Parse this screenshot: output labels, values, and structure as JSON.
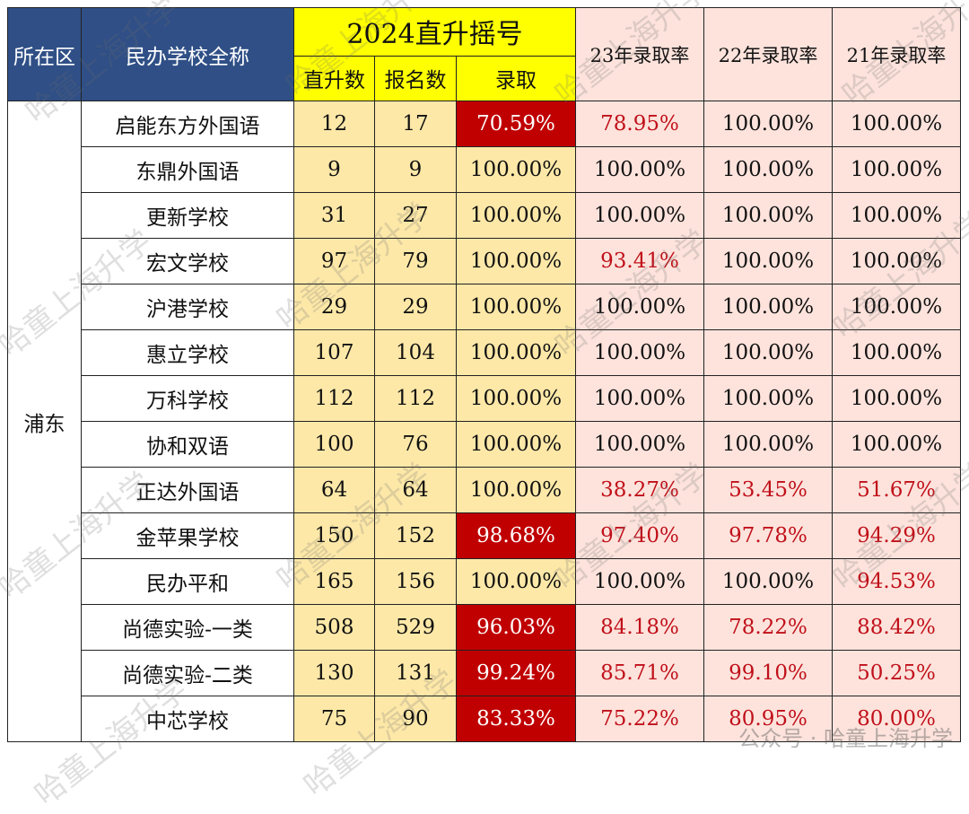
{
  "headers": {
    "district": "所在区",
    "school": "民办学校全称",
    "lottery_title": "2024直升摇号",
    "direct": "直升数",
    "applicants": "报名数",
    "admit": "录取",
    "y23": "23年录取率",
    "y22": "22年录取率",
    "y21": "21年录取率"
  },
  "district": "浦东",
  "rows": [
    {
      "school": "启能东方外国语",
      "direct": "12",
      "applicants": "17",
      "rate": "70.59%",
      "rate_hl": true,
      "y23": "78.95%",
      "y23_red": true,
      "y22": "100.00%",
      "y22_red": false,
      "y21": "100.00%",
      "y21_red": false
    },
    {
      "school": "东鼎外国语",
      "direct": "9",
      "applicants": "9",
      "rate": "100.00%",
      "rate_hl": false,
      "y23": "100.00%",
      "y23_red": false,
      "y22": "100.00%",
      "y22_red": false,
      "y21": "100.00%",
      "y21_red": false
    },
    {
      "school": "更新学校",
      "direct": "31",
      "applicants": "27",
      "rate": "100.00%",
      "rate_hl": false,
      "y23": "100.00%",
      "y23_red": false,
      "y22": "100.00%",
      "y22_red": false,
      "y21": "100.00%",
      "y21_red": false
    },
    {
      "school": "宏文学校",
      "direct": "97",
      "applicants": "79",
      "rate": "100.00%",
      "rate_hl": false,
      "y23": "93.41%",
      "y23_red": true,
      "y22": "100.00%",
      "y22_red": false,
      "y21": "100.00%",
      "y21_red": false
    },
    {
      "school": "沪港学校",
      "direct": "29",
      "applicants": "29",
      "rate": "100.00%",
      "rate_hl": false,
      "y23": "100.00%",
      "y23_red": false,
      "y22": "100.00%",
      "y22_red": false,
      "y21": "100.00%",
      "y21_red": false
    },
    {
      "school": "惠立学校",
      "direct": "107",
      "applicants": "104",
      "rate": "100.00%",
      "rate_hl": false,
      "y23": "100.00%",
      "y23_red": false,
      "y22": "100.00%",
      "y22_red": false,
      "y21": "100.00%",
      "y21_red": false
    },
    {
      "school": "万科学校",
      "direct": "112",
      "applicants": "112",
      "rate": "100.00%",
      "rate_hl": false,
      "y23": "100.00%",
      "y23_red": false,
      "y22": "100.00%",
      "y22_red": false,
      "y21": "100.00%",
      "y21_red": false
    },
    {
      "school": "协和双语",
      "direct": "100",
      "applicants": "76",
      "rate": "100.00%",
      "rate_hl": false,
      "y23": "100.00%",
      "y23_red": false,
      "y22": "100.00%",
      "y22_red": false,
      "y21": "100.00%",
      "y21_red": false
    },
    {
      "school": "正达外国语",
      "direct": "64",
      "applicants": "64",
      "rate": "100.00%",
      "rate_hl": false,
      "y23": "38.27%",
      "y23_red": true,
      "y22": "53.45%",
      "y22_red": true,
      "y21": "51.67%",
      "y21_red": true
    },
    {
      "school": "金苹果学校",
      "direct": "150",
      "applicants": "152",
      "rate": "98.68%",
      "rate_hl": true,
      "y23": "97.40%",
      "y23_red": true,
      "y22": "97.78%",
      "y22_red": true,
      "y21": "94.29%",
      "y21_red": true
    },
    {
      "school": "民办平和",
      "direct": "165",
      "applicants": "156",
      "rate": "100.00%",
      "rate_hl": false,
      "y23": "100.00%",
      "y23_red": false,
      "y22": "100.00%",
      "y22_red": false,
      "y21": "94.53%",
      "y21_red": true
    },
    {
      "school": "尚德实验-一类",
      "direct": "508",
      "applicants": "529",
      "rate": "96.03%",
      "rate_hl": true,
      "y23": "84.18%",
      "y23_red": true,
      "y22": "78.22%",
      "y22_red": true,
      "y21": "88.42%",
      "y21_red": true
    },
    {
      "school": "尚德实验-二类",
      "direct": "130",
      "applicants": "131",
      "rate": "99.24%",
      "rate_hl": true,
      "y23": "85.71%",
      "y23_red": true,
      "y22": "99.10%",
      "y22_red": true,
      "y21": "50.25%",
      "y21_red": true
    },
    {
      "school": "中芯学校",
      "direct": "75",
      "applicants": "90",
      "rate": "83.33%",
      "rate_hl": true,
      "y23": "75.22%",
      "y23_red": true,
      "y22": "80.95%",
      "y22_red": true,
      "y21": "80.00%",
      "y21_red": true
    }
  ],
  "watermark_text": "哈童上海升学",
  "footer_watermark": "公众号 · 哈童上海升学"
}
